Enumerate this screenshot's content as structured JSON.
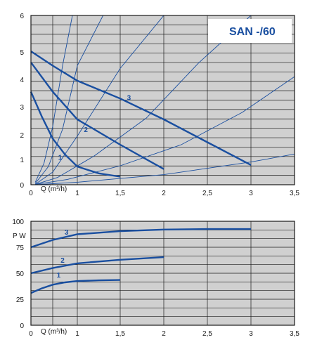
{
  "chart_data": [
    {
      "type": "line",
      "title": "SAN -/60",
      "xlabel": "Q (m³/h)",
      "ylabel": "",
      "xlim": [
        0,
        3.5
      ],
      "ylim": [
        0,
        6
      ],
      "x_ticks": [
        "0",
        "1",
        "1,5",
        "2",
        "2,5",
        "3",
        "3,5"
      ],
      "y_ticks": [
        "0",
        "1",
        "2",
        "3",
        "4",
        "5",
        "6"
      ],
      "grid": true,
      "background": "#d0d0d0",
      "series_color": "#1a4fa0",
      "series": [
        {
          "name": "1",
          "x": [
            0,
            0.25,
            0.5,
            0.75,
            1.0,
            1.25,
            1.5
          ],
          "y": [
            3.55,
            2.65,
            1.85,
            1.2,
            0.72,
            0.45,
            0.32
          ]
        },
        {
          "name": "2",
          "x": [
            0,
            0.5,
            1.0,
            1.5,
            2.0
          ],
          "y": [
            4.62,
            3.55,
            2.55,
            1.6,
            0.62
          ]
        },
        {
          "name": "3",
          "x": [
            0,
            0.5,
            1.0,
            1.5,
            2.0,
            2.5,
            3.0
          ],
          "y": [
            5.02,
            4.5,
            3.95,
            3.3,
            2.55,
            1.7,
            0.78
          ]
        }
      ],
      "system_curves": [
        {
          "x": [
            0.1,
            0.3,
            0.5,
            0.7,
            0.9,
            1.05
          ],
          "y": [
            0.1,
            0.85,
            2.3,
            4.5,
            7.5,
            10
          ]
        },
        {
          "x": [
            0.1,
            0.4,
            0.7,
            1.0,
            1.3,
            1.55
          ],
          "y": [
            0.05,
            0.72,
            2.2,
            4.5,
            7.6,
            10.8
          ]
        },
        {
          "x": [
            0.1,
            0.5,
            1.0,
            1.5,
            2.0,
            2.4
          ],
          "y": [
            0.02,
            0.5,
            1.95,
            4.4,
            7.8,
            11.2
          ]
        },
        {
          "x": [
            0.1,
            0.6,
            1.2,
            1.8,
            2.4,
            3.0,
            3.5
          ],
          "y": [
            0.01,
            0.29,
            1.15,
            2.6,
            4.6,
            7.2,
            9.8
          ]
        },
        {
          "x": [
            0.1,
            0.8,
            1.5,
            2.2,
            2.9,
            3.5
          ],
          "y": [
            0.01,
            0.21,
            0.75,
            1.6,
            2.8,
            4.1
          ]
        },
        {
          "x": [
            0.1,
            1.0,
            2.0,
            3.0,
            3.5
          ],
          "y": [
            0.0,
            0.1,
            0.4,
            0.9,
            1.22
          ]
        }
      ]
    },
    {
      "type": "line",
      "title": "",
      "xlabel": "Q (m³/h)",
      "ylabel": "P W",
      "xlim": [
        0,
        3.5
      ],
      "ylim": [
        0,
        100
      ],
      "x_ticks": [
        "0",
        "1",
        "1,5",
        "2",
        "2,5",
        "3",
        "3,5"
      ],
      "y_ticks": [
        "0",
        "25",
        "50",
        "75",
        "100"
      ],
      "grid": true,
      "background": "#d0d0d0",
      "series_color": "#1a4fa0",
      "series": [
        {
          "name": "1",
          "x": [
            0,
            0.25,
            0.5,
            0.75,
            1.0,
            1.25,
            1.5
          ],
          "y": [
            31,
            35.5,
            39,
            41.2,
            42.5,
            43.2,
            43.5
          ]
        },
        {
          "name": "2",
          "x": [
            0,
            0.5,
            1.0,
            1.5,
            2.0
          ],
          "y": [
            50,
            55,
            59.5,
            63,
            65.5
          ]
        },
        {
          "name": "3",
          "x": [
            0,
            0.5,
            1.0,
            1.5,
            2.0,
            2.5,
            3.0
          ],
          "y": [
            75,
            82,
            87.5,
            90.5,
            92,
            92.5,
            92.5
          ]
        }
      ]
    }
  ]
}
